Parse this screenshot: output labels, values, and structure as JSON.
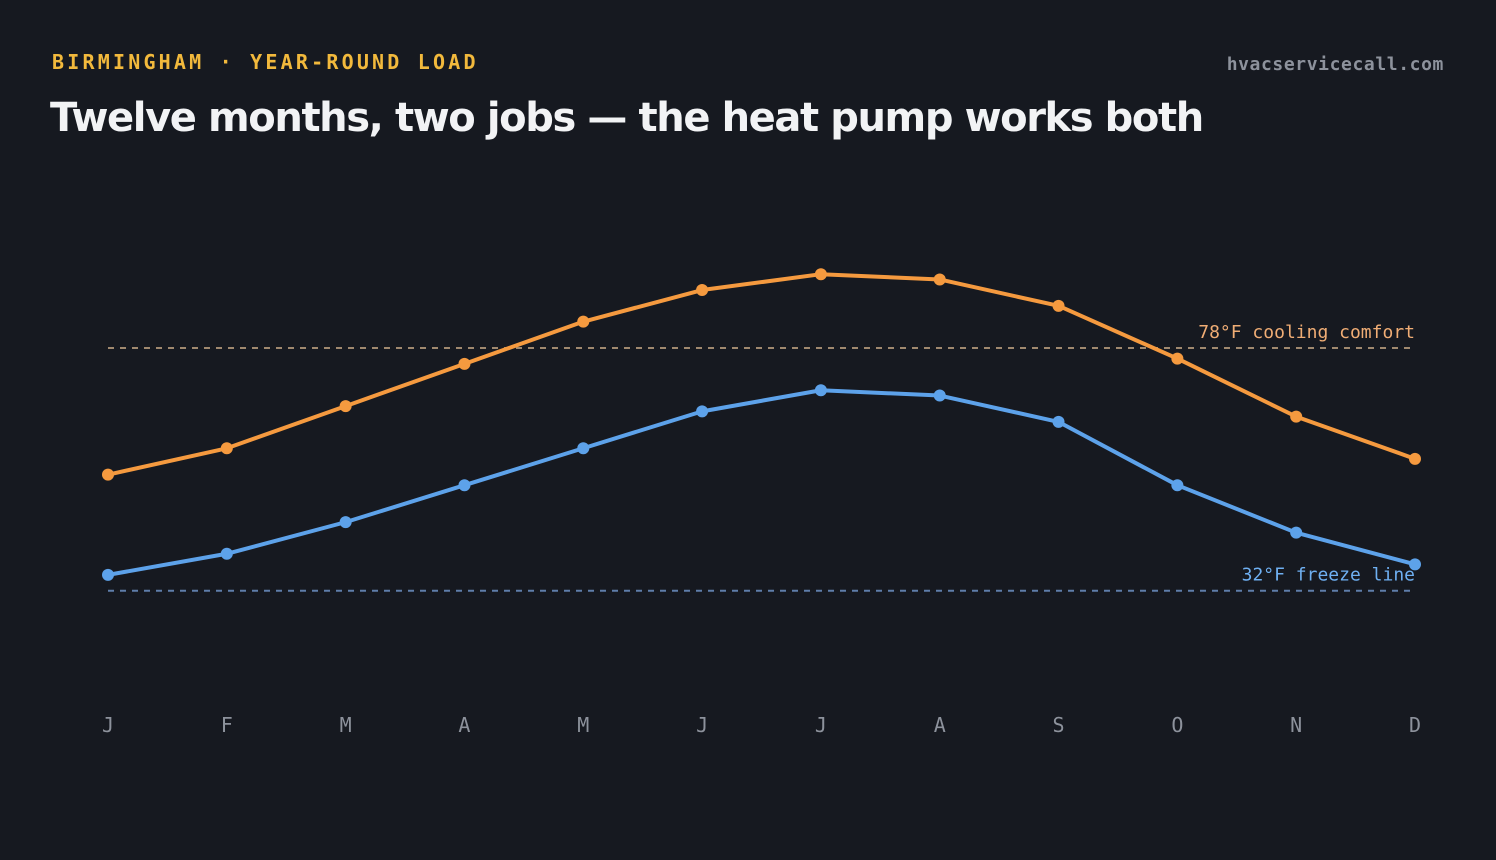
{
  "header": {
    "eyebrow": "BIRMINGHAM · YEAR-ROUND LOAD",
    "source": "hvacservicecall.com",
    "title": "Twelve months, two jobs — the heat pump works both"
  },
  "colors": {
    "background": "#161920",
    "high": "#f59a3f",
    "low": "#5da2ea",
    "cooling_ref": "#a0896f",
    "cooling_label": "#f0ad75",
    "freeze_ref": "#5f7eaa",
    "freeze_label": "#6fb0f2",
    "eyebrow": "#f2b93c",
    "muted": "#8d929c",
    "title": "#f2f3f5"
  },
  "chart_data": {
    "type": "line",
    "categories": [
      "J",
      "F",
      "M",
      "A",
      "M",
      "J",
      "J",
      "A",
      "S",
      "O",
      "N",
      "D"
    ],
    "series": [
      {
        "key": "high",
        "values": [
          54,
          59,
          67,
          75,
          83,
          89,
          92,
          91,
          86,
          76,
          65,
          57
        ]
      },
      {
        "key": "low",
        "values": [
          35,
          39,
          45,
          52,
          59,
          66,
          70,
          69,
          64,
          52,
          43,
          37
        ]
      }
    ],
    "reference_lines": [
      {
        "key": "cooling",
        "value": 78,
        "label": "78°F cooling comfort"
      },
      {
        "key": "freeze",
        "value": 32,
        "label": "32°F freeze line"
      }
    ],
    "ylim": [
      20,
      100
    ],
    "grid": false,
    "legend": "none"
  }
}
